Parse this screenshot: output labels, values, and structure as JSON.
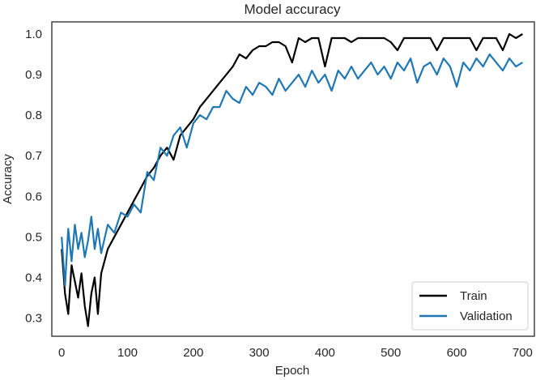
{
  "chart_data": {
    "type": "line",
    "title": "Model accuracy",
    "xlabel": "Epoch",
    "ylabel": "Accuracy",
    "xlim": [
      -15,
      718
    ],
    "ylim": [
      0.255,
      1.03
    ],
    "xticks": [
      0,
      100,
      200,
      300,
      400,
      500,
      600,
      700
    ],
    "yticks": [
      0.3,
      0.4,
      0.5,
      0.6,
      0.7,
      0.8,
      0.9,
      1.0
    ],
    "ytick_labels": [
      "0.3",
      "0.4",
      "0.5",
      "0.6",
      "0.7",
      "0.8",
      "0.9",
      "1.0"
    ],
    "grid": false,
    "legend_position": "bottom-right",
    "x": [
      0,
      5,
      10,
      15,
      20,
      25,
      30,
      35,
      40,
      45,
      50,
      55,
      60,
      70,
      80,
      90,
      100,
      110,
      120,
      130,
      140,
      150,
      160,
      170,
      180,
      190,
      200,
      210,
      220,
      230,
      240,
      250,
      260,
      270,
      280,
      290,
      300,
      310,
      320,
      330,
      340,
      350,
      360,
      370,
      380,
      390,
      400,
      410,
      420,
      430,
      440,
      450,
      460,
      470,
      480,
      490,
      500,
      510,
      520,
      530,
      540,
      550,
      560,
      570,
      580,
      590,
      600,
      610,
      620,
      630,
      640,
      650,
      660,
      670,
      680,
      690,
      700
    ],
    "series": [
      {
        "name": "Train",
        "color": "#000000",
        "values": [
          0.47,
          0.36,
          0.31,
          0.43,
          0.39,
          0.35,
          0.41,
          0.33,
          0.28,
          0.36,
          0.4,
          0.31,
          0.41,
          0.47,
          0.5,
          0.53,
          0.56,
          0.59,
          0.62,
          0.65,
          0.67,
          0.7,
          0.72,
          0.69,
          0.75,
          0.77,
          0.79,
          0.82,
          0.84,
          0.86,
          0.88,
          0.9,
          0.92,
          0.95,
          0.94,
          0.96,
          0.97,
          0.97,
          0.98,
          0.98,
          0.97,
          0.93,
          0.99,
          0.98,
          0.99,
          0.99,
          0.92,
          0.99,
          0.99,
          0.99,
          0.98,
          0.99,
          0.99,
          0.99,
          0.99,
          0.99,
          0.98,
          0.96,
          0.99,
          0.99,
          0.99,
          0.99,
          0.99,
          0.96,
          0.99,
          0.99,
          0.99,
          0.99,
          0.99,
          0.96,
          0.99,
          0.99,
          0.99,
          0.96,
          1.0,
          0.99,
          1.0
        ]
      },
      {
        "name": "Validation",
        "color": "#1f77b4",
        "values": [
          0.5,
          0.38,
          0.52,
          0.44,
          0.53,
          0.47,
          0.51,
          0.45,
          0.49,
          0.55,
          0.47,
          0.52,
          0.46,
          0.53,
          0.51,
          0.56,
          0.55,
          0.58,
          0.56,
          0.66,
          0.64,
          0.72,
          0.7,
          0.75,
          0.77,
          0.72,
          0.78,
          0.8,
          0.79,
          0.82,
          0.82,
          0.86,
          0.84,
          0.83,
          0.87,
          0.85,
          0.88,
          0.87,
          0.85,
          0.89,
          0.86,
          0.88,
          0.9,
          0.87,
          0.91,
          0.88,
          0.9,
          0.86,
          0.91,
          0.89,
          0.92,
          0.89,
          0.91,
          0.93,
          0.9,
          0.92,
          0.89,
          0.93,
          0.91,
          0.94,
          0.88,
          0.92,
          0.93,
          0.9,
          0.94,
          0.92,
          0.87,
          0.93,
          0.91,
          0.94,
          0.92,
          0.95,
          0.93,
          0.91,
          0.94,
          0.92,
          0.93
        ]
      }
    ]
  }
}
